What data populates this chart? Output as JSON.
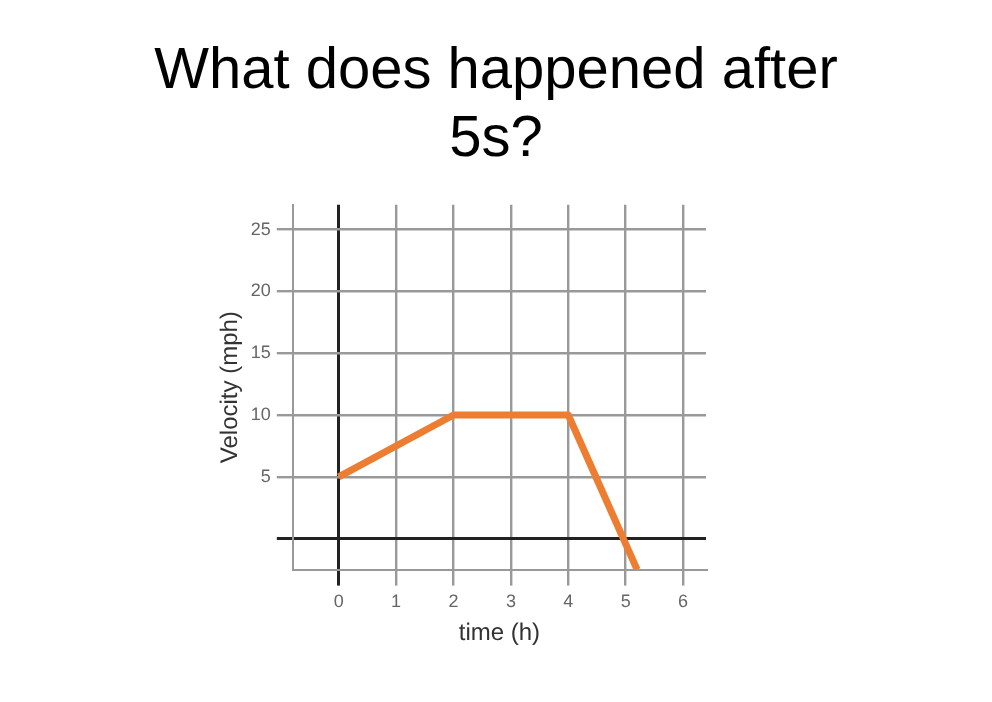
{
  "chart_data": {
    "type": "line",
    "title": "What does happened after 5s?",
    "xlabel": "time (h)",
    "ylabel": "Velocity (mph)",
    "x": [
      0,
      2,
      4,
      5.2
    ],
    "series": [
      {
        "color": "#ed7d31",
        "values": [
          5,
          10,
          10,
          -2.5
        ]
      }
    ],
    "xlim": [
      -0.8,
      6.4
    ],
    "xticks": [
      0,
      1,
      2,
      3,
      4,
      5,
      6
    ],
    "ylim": [
      -2.5,
      27
    ],
    "yticks": [
      {
        "value": 0,
        "label": null
      },
      5,
      10,
      15,
      20,
      25
    ],
    "grid": true,
    "legend": false,
    "marker": "none",
    "line_style": "solid"
  }
}
